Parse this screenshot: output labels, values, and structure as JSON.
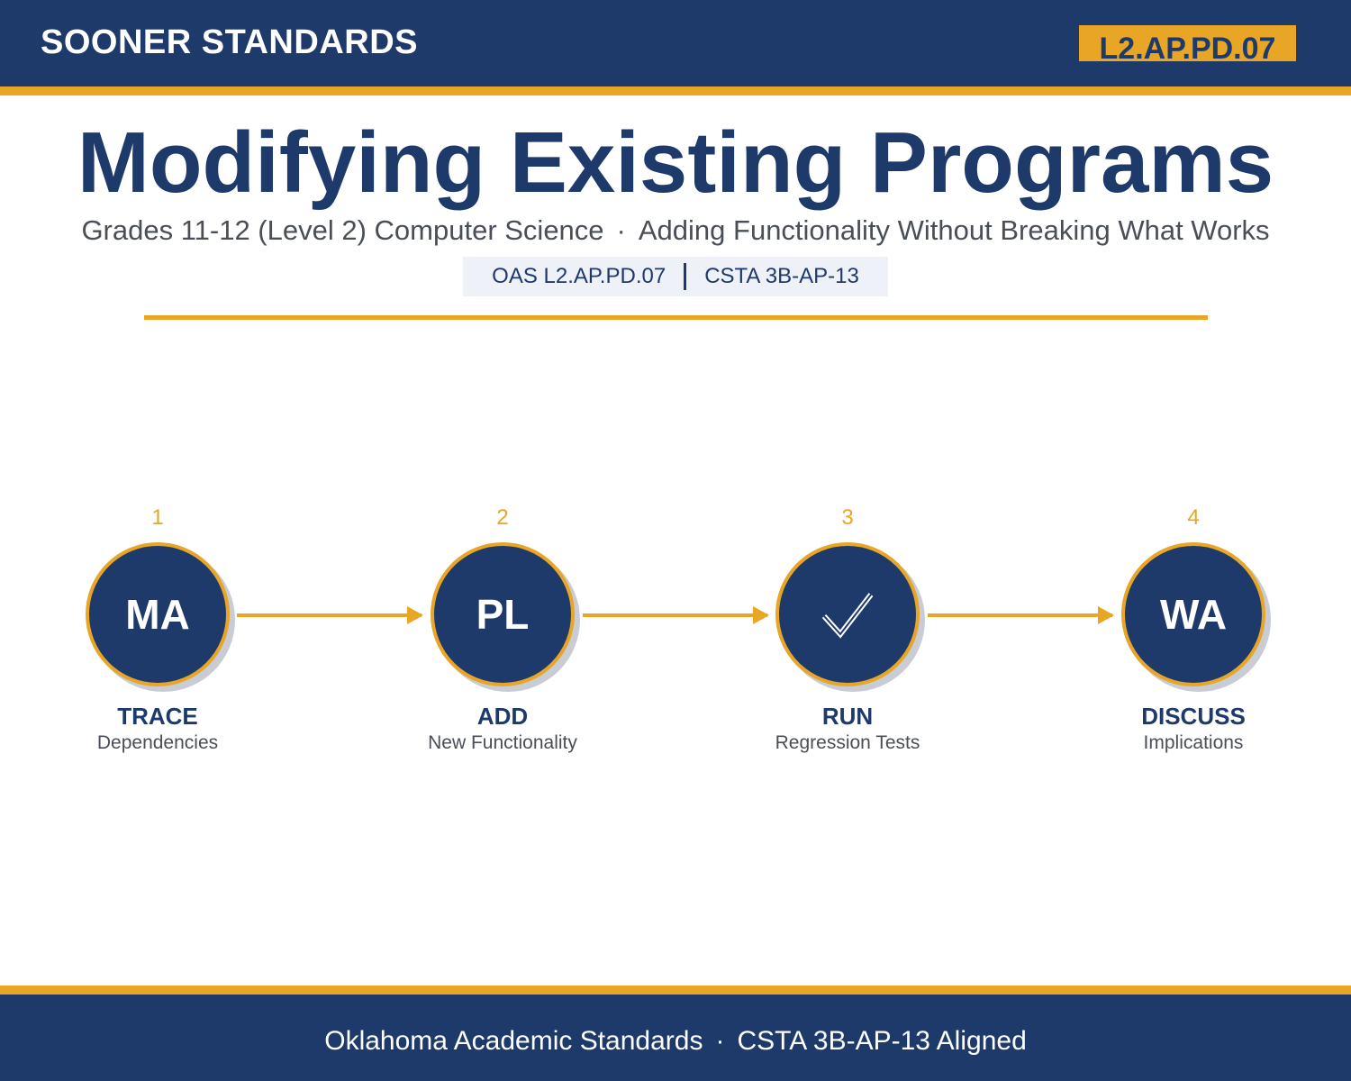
{
  "header": {
    "brand": "SOONER STANDARDS",
    "code_badge": "L2.AP.PD.07"
  },
  "title": "Modifying Existing Programs",
  "subtitle": {
    "part1": "Grades 11-12 (Level 2) Computer Science",
    "separator": "·",
    "part2": "Adding Functionality Without Breaking What Works"
  },
  "standards_tag": {
    "oas": "OAS L2.AP.PD.07",
    "csta": "CSTA 3B-AP-13"
  },
  "steps": [
    {
      "number": "1",
      "icon_text": "MA",
      "label": "TRACE",
      "sublabel": "Dependencies"
    },
    {
      "number": "2",
      "icon_text": "PL",
      "label": "ADD",
      "sublabel": "New Functionality"
    },
    {
      "number": "3",
      "icon_text": "",
      "icon": "checkmark-icon",
      "label": "RUN",
      "sublabel": "Regression Tests"
    },
    {
      "number": "4",
      "icon_text": "WA",
      "label": "DISCUSS",
      "sublabel": "Implications"
    }
  ],
  "footer": {
    "part1": "Oklahoma Academic Standards",
    "separator": "·",
    "part2": "CSTA 3B-AP-13 Aligned"
  },
  "colors": {
    "navy": "#1e3a6b",
    "gold": "#e8a526",
    "gray_text": "#4a4f57",
    "tag_bg": "#eef1f8"
  }
}
